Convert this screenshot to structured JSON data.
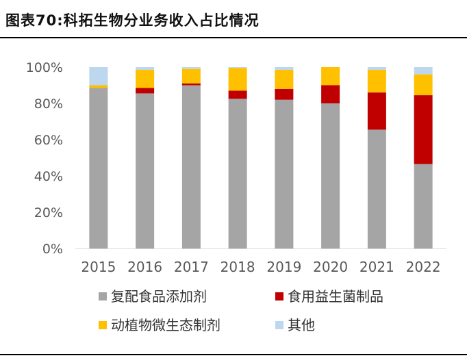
{
  "header": {
    "title": "图表70:科拓生物分业务收入占比情况"
  },
  "chart_data": {
    "type": "bar",
    "stacked": true,
    "categories": [
      "2015",
      "2016",
      "2017",
      "2018",
      "2019",
      "2020",
      "2021",
      "2022"
    ],
    "series": [
      {
        "name": "复配食品添加剂",
        "color": "#a5a5a5",
        "values": [
          88.5,
          85.5,
          90,
          82.5,
          82,
          80,
          65.5,
          46.5
        ]
      },
      {
        "name": "食用益生菌制品",
        "color": "#c00000",
        "values": [
          0,
          3,
          1,
          4.5,
          6,
          10,
          20.5,
          38
        ]
      },
      {
        "name": "动植物微生态制剂",
        "color": "#ffc000",
        "values": [
          1.5,
          10,
          8,
          12.5,
          10.5,
          10,
          12.5,
          11.5
        ]
      },
      {
        "name": "其他",
        "color": "#bdd7ee",
        "values": [
          10,
          1.5,
          1,
          0.5,
          1.5,
          0,
          1.5,
          4
        ]
      }
    ],
    "ylim": [
      0,
      100
    ],
    "yticks": [
      "0%",
      "20%",
      "40%",
      "60%",
      "80%",
      "100%"
    ],
    "grid": false,
    "legend_position": "bottom"
  }
}
